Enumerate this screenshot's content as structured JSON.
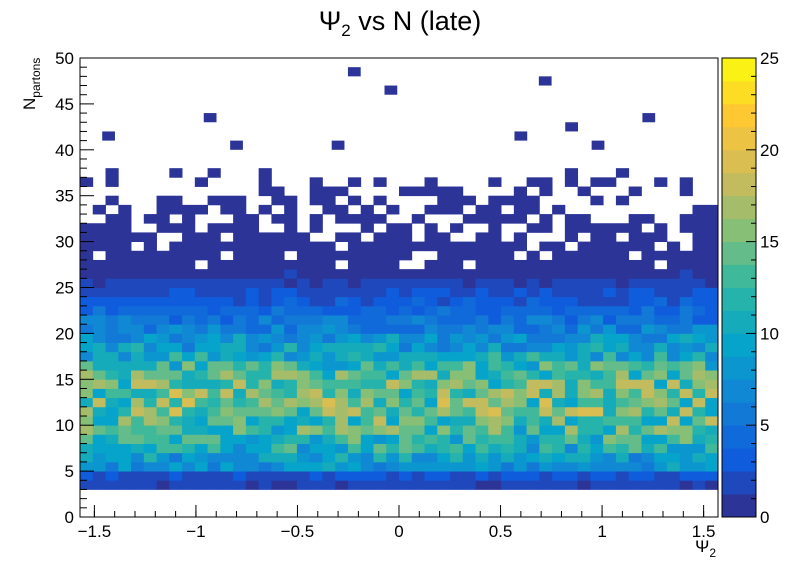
{
  "chart_data": {
    "type": "heatmap",
    "title_parts": [
      "Ψ",
      "2",
      " vs N (late)"
    ],
    "xlabel_parts": [
      "Ψ",
      "2"
    ],
    "ylabel_parts": [
      "N",
      "partons"
    ],
    "xlim": [
      -1.5708,
      1.5708
    ],
    "ylim": [
      0,
      50
    ],
    "bins": {
      "nx": 50,
      "ny": 50
    },
    "x_ticks": [
      -1.5,
      -1,
      -0.5,
      0,
      0.5,
      1,
      1.5
    ],
    "x_tick_labels": [
      "−1.5",
      "−1",
      "−0.5",
      "0",
      "0.5",
      "1",
      "1.5"
    ],
    "y_ticks": [
      0,
      5,
      10,
      15,
      20,
      25,
      30,
      35,
      40,
      45,
      50
    ],
    "y_tick_labels": [
      "0",
      "5",
      "10",
      "15",
      "20",
      "25",
      "30",
      "35",
      "40",
      "45",
      "50"
    ],
    "z_range": [
      0,
      25
    ],
    "z_ticks": [
      0,
      5,
      10,
      15,
      20,
      25
    ],
    "z_tick_labels": [
      "0",
      "5",
      "10",
      "15",
      "20",
      "25"
    ],
    "palette": "kBird",
    "isolated_high_cells": [
      [
        -0.22,
        48.5,
        1
      ],
      [
        -0.04,
        46.5,
        1
      ],
      [
        0.72,
        47.5,
        1
      ],
      [
        -0.93,
        43.5,
        1
      ],
      [
        1.23,
        43.5,
        1
      ],
      [
        0.85,
        42.5,
        1
      ],
      [
        -1.43,
        41.5,
        1
      ],
      [
        -0.8,
        40.5,
        1
      ],
      [
        -0.3,
        40.5,
        1
      ],
      [
        0.98,
        40.5,
        1
      ],
      [
        0.6,
        41.5,
        1
      ]
    ],
    "description_profile": "Counts per bin rise from ~1 at N=3-4 to a maximum of about 20-25 near N=10-14 across the full Ψ2 range, then fall off to ~1-3 by N=30, with sparse single-count bins between N=30 and N=49."
  }
}
